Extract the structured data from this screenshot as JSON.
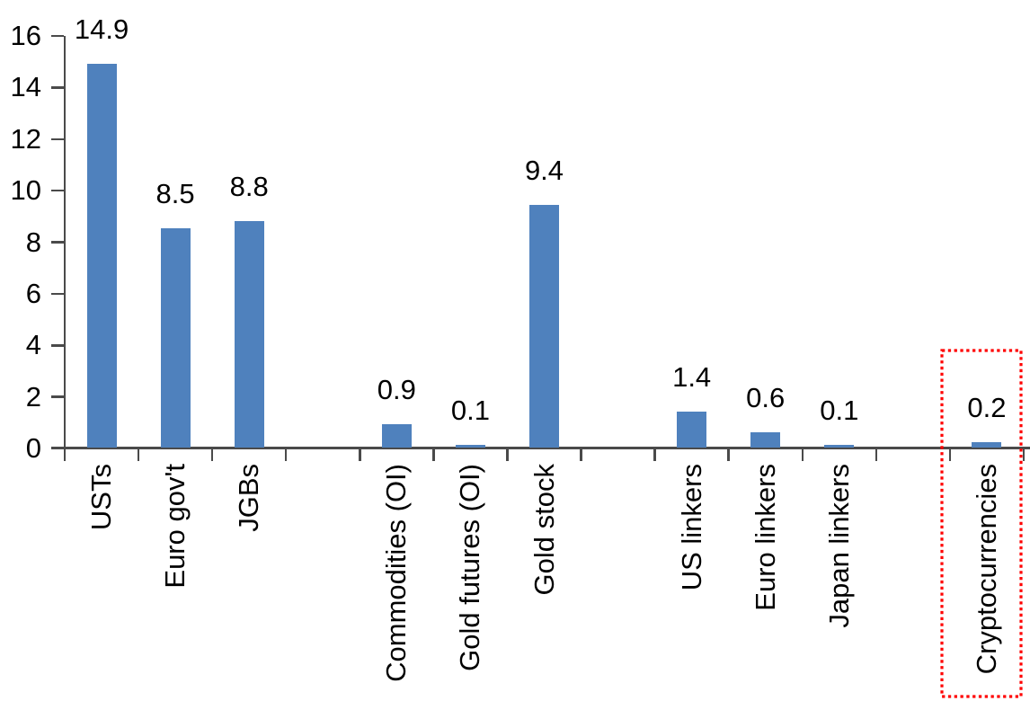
{
  "chart_data": {
    "type": "bar",
    "title": "",
    "xlabel": "",
    "ylabel": "",
    "categories": [
      "USTs",
      "Euro gov't",
      "JGBs",
      "",
      "Commodities (OI)",
      "Gold futures (OI)",
      "Gold stock",
      "",
      "US linkers",
      "Euro linkers",
      "Japan linkers",
      "",
      "Cryptocurrencies"
    ],
    "values": [
      14.9,
      8.5,
      8.8,
      null,
      0.9,
      0.1,
      9.4,
      null,
      1.4,
      0.6,
      0.1,
      null,
      0.2
    ],
    "value_label_decimals": 1,
    "ylim": [
      0,
      16
    ],
    "yticks": [
      0,
      2,
      4,
      6,
      8,
      10,
      12,
      14,
      16
    ],
    "grid": false,
    "legend": false,
    "bar_color": "#4F81BD",
    "axis_color": "#4a4a4a",
    "text_color": "#000000",
    "highlight": {
      "category": "Cryptocurrencies",
      "style": "red-dotted-box",
      "color": "#FF0000"
    }
  }
}
